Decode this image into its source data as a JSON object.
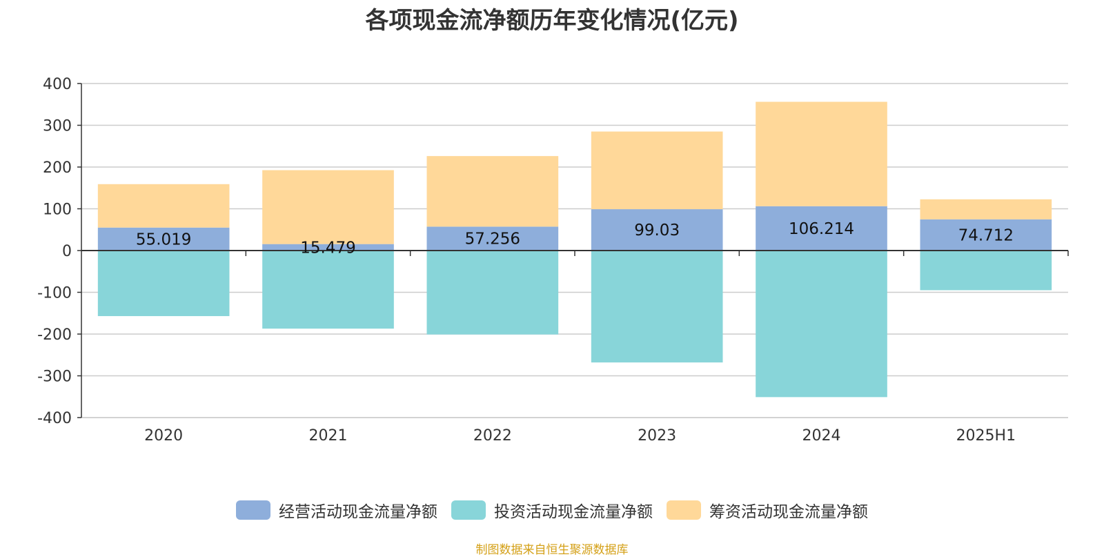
{
  "chart_data": {
    "type": "bar",
    "stacked": true,
    "title": "各项现金流净额历年变化情况(亿元)",
    "categories": [
      "2020",
      "2021",
      "2022",
      "2023",
      "2024",
      "2025H1"
    ],
    "ylim": [
      -400,
      400
    ],
    "yticks": [
      400,
      300,
      200,
      100,
      0,
      -100,
      -200,
      -300,
      -400
    ],
    "grid": true,
    "legend_position": "bottom",
    "series": [
      {
        "name": "经营活动现金流量净额",
        "color": "#8eaedb",
        "values": [
          55.019,
          15.479,
          57.256,
          99.03,
          106.214,
          74.712
        ],
        "labels": [
          "55.019",
          "15.479",
          "57.256",
          "99.03",
          "106.214",
          "74.712"
        ]
      },
      {
        "name": "投资活动现金流量净额",
        "color": "#88d5d9",
        "values": [
          -157,
          -187,
          -201,
          -268,
          -351,
          -95
        ]
      },
      {
        "name": "筹资活动现金流量净额",
        "color": "#ffd899",
        "values": [
          104,
          177,
          169,
          186,
          250,
          48
        ]
      }
    ],
    "source": "制图数据来自恒生聚源数据库"
  }
}
